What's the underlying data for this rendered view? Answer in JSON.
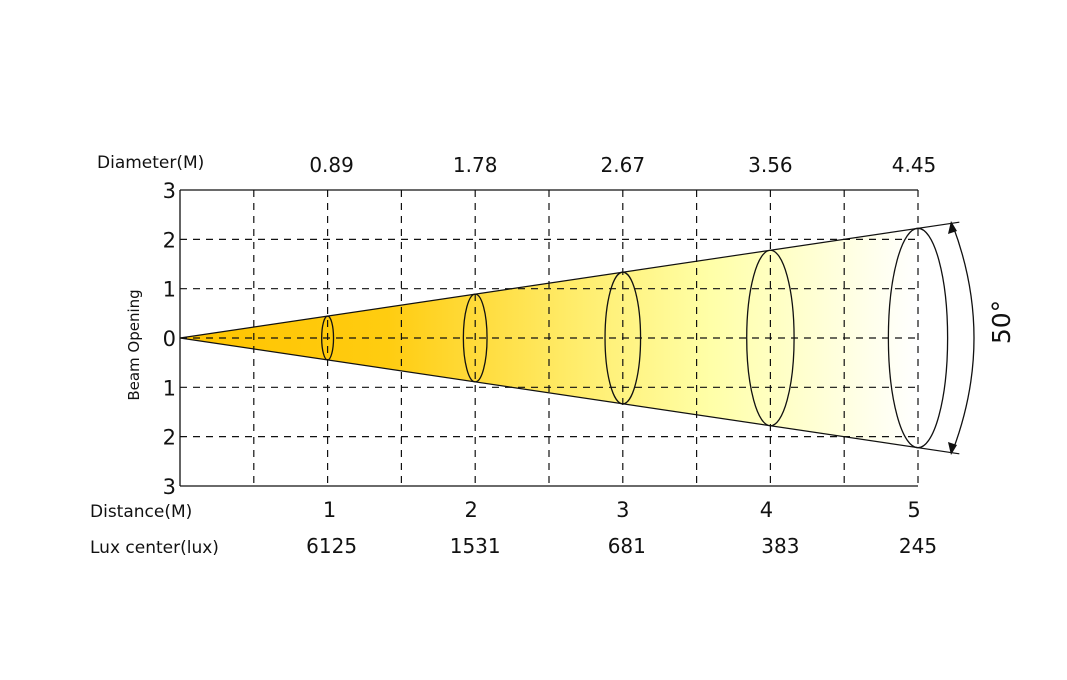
{
  "labels": {
    "diameter": "Diameter(M)",
    "distance": "Distance(M)",
    "lux": "Lux center(lux)",
    "y_axis": "Beam Opening",
    "angle": "50°"
  },
  "y_ticks": [
    "3",
    "2",
    "1",
    "0",
    "1",
    "2",
    "3"
  ],
  "distances": [
    "1",
    "2",
    "3",
    "4",
    "5"
  ],
  "diameters": [
    "0.89",
    "1.78",
    "2.67",
    "3.56",
    "4.45"
  ],
  "lux_center": [
    "6125",
    "1531",
    "681",
    "383",
    "245"
  ],
  "beam_angle_deg": 50,
  "colors": {
    "beam_start": "#FFC400",
    "beam_mid": "#FFFF99",
    "beam_end": "#FFFFFF",
    "line": "#111111"
  }
}
